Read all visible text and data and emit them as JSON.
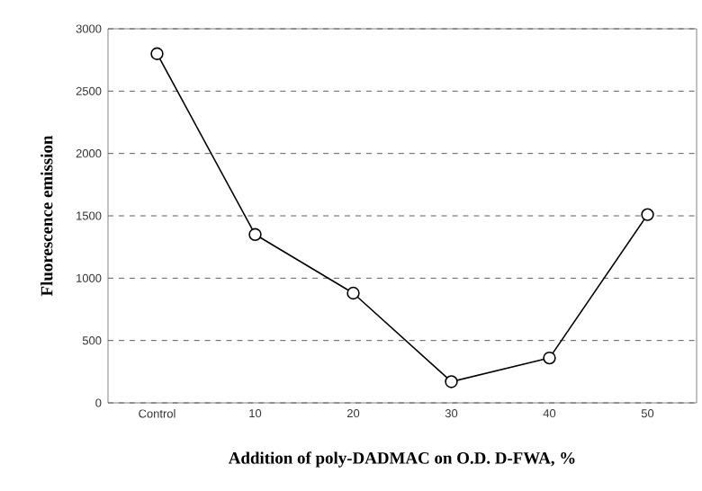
{
  "chart_data": {
    "type": "line",
    "xlabel": "Addition of poly-DADMAC on O.D. D-FWA, %",
    "ylabel": "Fluorescence emission",
    "categories": [
      "Control",
      "10",
      "20",
      "30",
      "40",
      "50"
    ],
    "series": [
      {
        "color": "#000000",
        "values": [
          2800,
          1350,
          880,
          170,
          360,
          1510
        ]
      }
    ],
    "ylim": [
      0,
      3000
    ],
    "yticks": [
      0,
      500,
      1000,
      1500,
      2000,
      2500,
      3000
    ],
    "grid": "y",
    "marker": "circle",
    "line_style": "solid"
  }
}
